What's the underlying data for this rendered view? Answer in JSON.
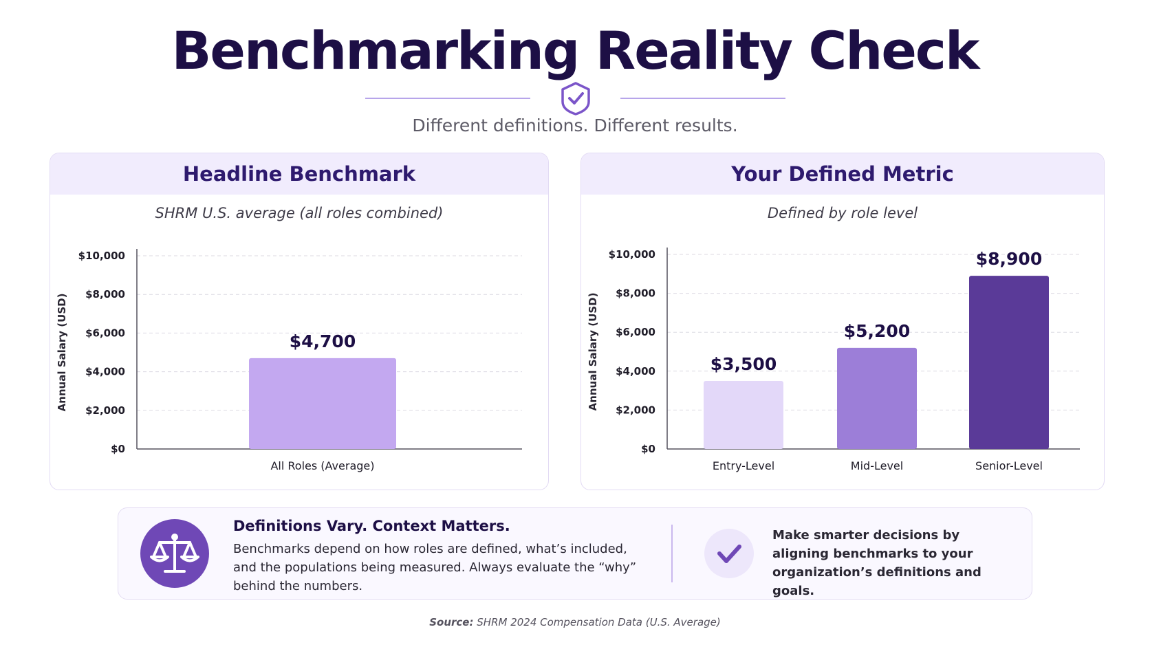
{
  "header": {
    "title": "Benchmarking Reality Check",
    "subtitle": "Different definitions. Different results."
  },
  "chart_data": [
    {
      "type": "bar",
      "panel_title": "Headline Benchmark",
      "subtitle": "SHRM U.S. average (all roles combined)",
      "ylabel": "Annual Salary (USD)",
      "categories": [
        "All Roles (Average)"
      ],
      "values": [
        4700
      ],
      "value_labels": [
        "$4,700"
      ],
      "yticks": [
        "$0",
        "$2,000",
        "$4,000",
        "$6,000",
        "$8,000",
        "$10,000"
      ],
      "ylim": [
        0,
        10000
      ],
      "grid": true,
      "colors": [
        "#c3a8f0"
      ]
    },
    {
      "type": "bar",
      "panel_title": "Your Defined Metric",
      "subtitle": "Defined by role level",
      "ylabel": "Annual Salary (USD)",
      "categories": [
        "Entry-Level",
        "Mid-Level",
        "Senior-Level"
      ],
      "values": [
        3500,
        5200,
        8900
      ],
      "value_labels": [
        "$3,500",
        "$5,200",
        "$8,900"
      ],
      "yticks": [
        "$0",
        "$2,000",
        "$4,000",
        "$6,000",
        "$8,000",
        "$10,000"
      ],
      "ylim": [
        0,
        10000
      ],
      "grid": true,
      "colors": [
        "#e3d8f9",
        "#9c7ed8",
        "#5a3a98"
      ]
    }
  ],
  "callout": {
    "title": "Definitions Vary. Context Matters.",
    "text": "Benchmarks depend on how roles are defined, what’s included, and the populations being measured. Always evaluate the “why” behind the numbers.",
    "takeaway": "Make smarter decisions by aligning benchmarks to your organization’s definitions and goals.",
    "icon_left": "scales-icon",
    "icon_right": "checkmark-icon",
    "accent": "#6f48b6"
  },
  "footer": {
    "source_label": "Source:",
    "source_text": "SHRM 2024 Compensation Data (U.S. Average)"
  }
}
